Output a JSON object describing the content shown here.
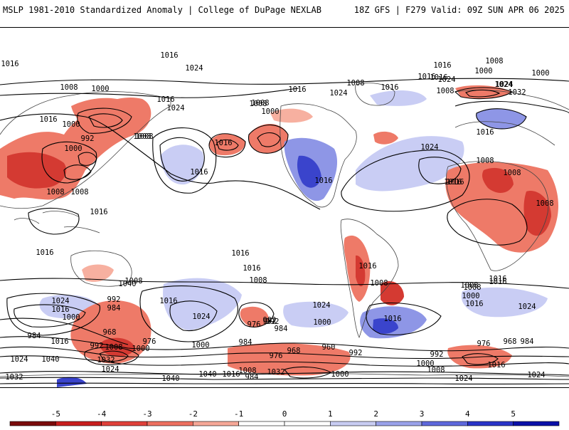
{
  "header": {
    "left_title": "MSLP 1981-2010 Standardized Anomaly | College of DuPage NEXLAB",
    "right_title": "18Z GFS | F279 Valid: 09Z SUN APR 06 2025"
  },
  "colorbar": {
    "ticks": [
      "-5",
      "-4",
      "-3",
      "-2",
      "-1",
      "0",
      "1",
      "2",
      "3",
      "4",
      "5"
    ],
    "bins": [
      "#7a0b0b",
      "#c81e1e",
      "#e0403a",
      "#ee7060",
      "#f6a898",
      "#ffffff",
      "#ffffff",
      "#c8ccf2",
      "#9aa2ea",
      "#5e68dc",
      "#2a34c8",
      "#0a10a8"
    ]
  },
  "map": {
    "anomaly_colors": {
      "strong_neg": "#d43a32",
      "neg": "#ee7a68",
      "weak_neg": "#f7b0a0",
      "weak_pos": "#c9cdf4",
      "pos": "#8e96e6",
      "strong_pos": "#3a44cc"
    },
    "isobar_labels": [
      "1016",
      "1024",
      "1016",
      "1008",
      "1016",
      "1000",
      "1016",
      "1000",
      "992",
      "1008",
      "1000",
      "1016",
      "1024",
      "1008",
      "1008",
      "1000",
      "1016",
      "1024",
      "1008",
      "1016",
      "1016",
      "1016",
      "1024",
      "1016",
      "1032",
      "1024",
      "1016",
      "1008",
      "1016",
      "1008",
      "1000",
      "1024",
      "1008",
      "1016",
      "1024",
      "1008",
      "1000",
      "1016",
      "1008",
      "1008",
      "1008",
      "1016",
      "1016",
      "1008",
      "1016",
      "1016",
      "1008",
      "1016",
      "1008",
      "1016",
      "1016",
      "1008",
      "1024",
      "1016",
      "1000",
      "992",
      "984",
      "1008",
      "1016",
      "1024",
      "1024",
      "1000",
      "992",
      "984",
      "1016",
      "1008",
      "1000",
      "1016",
      "1024",
      "1000",
      "992",
      "1016",
      "984",
      "1016",
      "968",
      "976",
      "992",
      "1000",
      "1008",
      "1040",
      "1024",
      "1032",
      "1024",
      "976",
      "992",
      "984",
      "976",
      "968",
      "960",
      "992",
      "992",
      "976",
      "968",
      "984",
      "1000",
      "1008",
      "1016",
      "1024",
      "1032",
      "1040",
      "1040",
      "1016",
      "1008",
      "984",
      "1032",
      "1000",
      "1024",
      "1040"
    ]
  }
}
